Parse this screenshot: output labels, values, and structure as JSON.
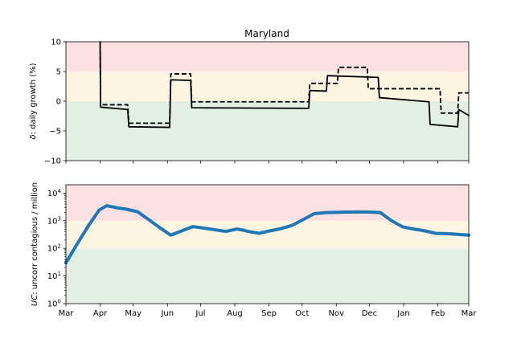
{
  "chart_data": [
    {
      "type": "line",
      "title": "Maryland",
      "ylabel_prefix": "δ",
      "ylabel_rest": ": daily growth (%)",
      "ylim": [
        -10,
        10
      ],
      "yticks": [
        10,
        5,
        0,
        -5,
        -10
      ],
      "ytick_labels": [
        "10",
        "5",
        "0",
        "−5",
        "−10"
      ],
      "bands": [
        {
          "from": 5,
          "to": 10,
          "color": "#fde1e2"
        },
        {
          "from": 0,
          "to": 5,
          "color": "#fdf4e2"
        },
        {
          "from": -10,
          "to": 0,
          "color": "#e3efe3"
        }
      ],
      "series": [
        {
          "style": "solid",
          "color": "#000000",
          "x": [
            31.0,
            31.4,
            56.0,
            57.0,
            94.0,
            95.0,
            113.0,
            114.0,
            220.0,
            221.0,
            236.0,
            237.0,
            283.0,
            284.0,
            329.0,
            330.0,
            355.0,
            356.0,
            365
          ],
          "y": [
            10.0,
            -1.0,
            -1.4,
            -4.3,
            -4.4,
            3.6,
            3.5,
            -1.1,
            -1.2,
            1.8,
            1.7,
            4.3,
            4.0,
            0.6,
            -0.1,
            -3.9,
            -4.3,
            -1.4,
            -2.4
          ]
        },
        {
          "style": "dashed",
          "color": "#000000",
          "x": [
            31.0,
            31.4,
            56.0,
            57.0,
            94.0,
            95.0,
            113.0,
            114.0,
            220.0,
            221.0,
            246.0,
            247.0,
            273.0,
            274.0,
            339.0,
            340.0,
            355.0,
            356.0,
            365
          ],
          "y": [
            10.0,
            -0.6,
            -0.6,
            -3.7,
            -3.7,
            4.6,
            4.6,
            -0.1,
            -0.1,
            3.0,
            3.0,
            5.7,
            5.7,
            2.1,
            2.1,
            -2.0,
            -2.0,
            1.4,
            1.4
          ]
        }
      ]
    },
    {
      "type": "line",
      "ylabel_prefix": "UC",
      "ylabel_rest": ": uncorr contagious / million",
      "yscale": "log",
      "ylim": [
        1,
        20000
      ],
      "yticks": [
        1,
        10,
        100,
        1000,
        10000
      ],
      "ytick_labels": [
        {
          "base": "10",
          "exp": "0"
        },
        {
          "base": "10",
          "exp": "1"
        },
        {
          "base": "10",
          "exp": "2"
        },
        {
          "base": "10",
          "exp": "3"
        },
        {
          "base": "10",
          "exp": "4"
        }
      ],
      "bands": [
        {
          "from": 1000,
          "to": 20000,
          "color": "#fde1e2"
        },
        {
          "from": 100,
          "to": 1000,
          "color": "#fdf4e2"
        },
        {
          "from": 1,
          "to": 100,
          "color": "#e3efe3"
        }
      ],
      "series": [
        {
          "style": "solid",
          "color": "#1f77b4",
          "x": [
            0,
            10,
            20,
            30,
            37,
            40,
            47,
            55,
            65,
            75,
            85,
            95,
            105,
            115,
            125,
            135,
            145,
            155,
            160,
            165,
            175,
            185,
            195,
            205,
            215,
            225,
            235,
            245,
            255,
            265,
            275,
            285,
            295,
            305,
            315,
            325,
            335,
            345,
            355,
            365
          ],
          "y": [
            30,
            140,
            620,
            2400,
            3500,
            3300,
            2900,
            2600,
            2100,
            1100,
            560,
            300,
            430,
            610,
            540,
            470,
            410,
            500,
            460,
            410,
            350,
            430,
            520,
            680,
            1100,
            1800,
            1950,
            2000,
            2050,
            2080,
            2050,
            1950,
            1000,
            600,
            500,
            430,
            350,
            340,
            320,
            300
          ]
        }
      ]
    }
  ],
  "x_axis": {
    "month_starts": [
      0,
      31,
      61,
      92,
      122,
      153,
      184,
      214,
      245,
      275,
      306,
      337,
      365
    ],
    "month_labels": [
      "Mar",
      "Apr",
      "May",
      "Jun",
      "Jul",
      "Aug",
      "Sep",
      "Oct",
      "Nov",
      "Dec",
      "Jan",
      "Feb",
      "Mar"
    ]
  }
}
